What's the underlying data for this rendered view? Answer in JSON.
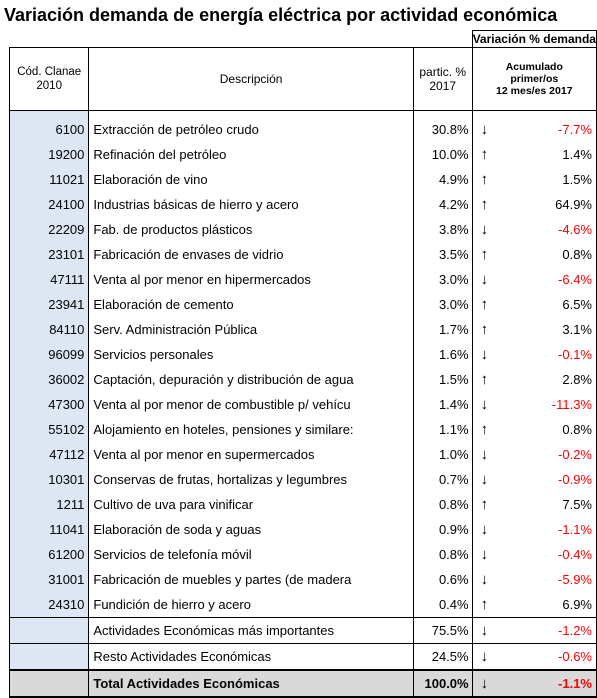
{
  "title": "Variación demanda de energía eléctrica por actividad económica",
  "header": {
    "group_label": "Variación % demanda",
    "code_label_1": "Cód. Clanae",
    "code_label_2": "2010",
    "desc_label": "Descripción",
    "share_label_1": "partic. %",
    "share_label_2": "2017",
    "var_label_1": "Acumulado",
    "var_label_2": "primer/os",
    "var_label_3": "12 mes/es 2017"
  },
  "rows": [
    {
      "code": "6100",
      "desc": "Extracción de petróleo crudo",
      "share": "30.8%",
      "arrow": "↓",
      "var": "-7.7%",
      "neg": true
    },
    {
      "code": "19200",
      "desc": "Refinación del petróleo",
      "share": "10.0%",
      "arrow": "↑",
      "var": "1.4%",
      "neg": false
    },
    {
      "code": "11021",
      "desc": "Elaboración de vino",
      "share": "4.9%",
      "arrow": "↑",
      "var": "1.5%",
      "neg": false
    },
    {
      "code": "24100",
      "desc": "Industrias básicas de hierro y acero",
      "share": "4.2%",
      "arrow": "↑",
      "var": "64.9%",
      "neg": false
    },
    {
      "code": "22209",
      "desc": "Fab. de productos plásticos",
      "share": "3.8%",
      "arrow": "↓",
      "var": "-4.6%",
      "neg": true
    },
    {
      "code": "23101",
      "desc": "Fabricación de envases de vidrio",
      "share": "3.5%",
      "arrow": "↑",
      "var": "0.8%",
      "neg": false
    },
    {
      "code": "47111",
      "desc": "Venta al por menor en hipermercados",
      "share": "3.0%",
      "arrow": "↓",
      "var": "-6.4%",
      "neg": true
    },
    {
      "code": "23941",
      "desc": "Elaboración de cemento",
      "share": "3.0%",
      "arrow": "↑",
      "var": "6.5%",
      "neg": false
    },
    {
      "code": "84110",
      "desc": "Serv. Administración Pública",
      "share": "1.7%",
      "arrow": "↑",
      "var": "3.1%",
      "neg": false
    },
    {
      "code": "96099",
      "desc": "Servicios personales",
      "share": "1.6%",
      "arrow": "↓",
      "var": "-0.1%",
      "neg": true
    },
    {
      "code": "36002",
      "desc": "Captación, depuración y distribución de agua",
      "share": "1.5%",
      "arrow": "↑",
      "var": "2.8%",
      "neg": false
    },
    {
      "code": "47300",
      "desc": "Venta al por menor de combustible p/ vehícu",
      "share": "1.4%",
      "arrow": "↓",
      "var": "-11.3%",
      "neg": true
    },
    {
      "code": "55102",
      "desc": "Alojamiento en hoteles, pensiones y similare:",
      "share": "1.1%",
      "arrow": "↑",
      "var": "0.8%",
      "neg": false
    },
    {
      "code": "47112",
      "desc": "Venta al por menor en supermercados",
      "share": "1.0%",
      "arrow": "↓",
      "var": "-0.2%",
      "neg": true
    },
    {
      "code": "10301",
      "desc": "Conservas de frutas, hortalizas y legumbres",
      "share": "0.7%",
      "arrow": "↓",
      "var": "-0.9%",
      "neg": true
    },
    {
      "code": "1211",
      "desc": "Cultivo de uva para vinificar",
      "share": "0.8%",
      "arrow": "↑",
      "var": "7.5%",
      "neg": false
    },
    {
      "code": "11041",
      "desc": "Elaboración de soda y aguas",
      "share": "0.9%",
      "arrow": "↓",
      "var": "-1.1%",
      "neg": true
    },
    {
      "code": "61200",
      "desc": "Servicios de telefonía móvil",
      "share": "0.8%",
      "arrow": "↓",
      "var": "-0.4%",
      "neg": true
    },
    {
      "code": "31001",
      "desc": "Fabricación de muebles y partes (de madera",
      "share": "0.6%",
      "arrow": "↓",
      "var": "-5.9%",
      "neg": true
    },
    {
      "code": "24310",
      "desc": "Fundición de hierro y acero",
      "share": "0.4%",
      "arrow": "↑",
      "var": "6.9%",
      "neg": false
    }
  ],
  "summary": [
    {
      "desc": "Actividades Económicas más importantes",
      "share": "75.5%",
      "arrow": "↓",
      "var": "-1.2%"
    },
    {
      "desc": "Resto Actividades Económicas",
      "share": "24.5%",
      "arrow": "↓",
      "var": "-0.6%"
    }
  ],
  "total": {
    "desc": "Total Actividades Económicas",
    "share": "100.0%",
    "arrow": "↓",
    "var": "-1.1%"
  },
  "colors": {
    "negative": "#ff0000",
    "code_bg": "#dde7f4",
    "total_bg": "#d9d9d9"
  }
}
